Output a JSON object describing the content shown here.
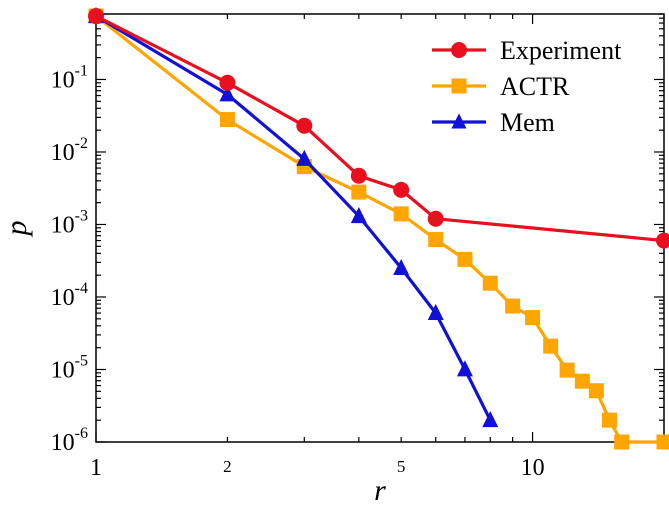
{
  "chart_data": {
    "type": "line",
    "xlabel": "r",
    "ylabel": "p",
    "xscale": "log",
    "yscale": "log",
    "xlim": [
      1,
      20
    ],
    "ylim": [
      1e-06,
      0.8
    ],
    "grid": false,
    "legend_position": "top-right",
    "x_ticks": [
      {
        "value": 1,
        "label": "1"
      },
      {
        "value": 2,
        "label": "2"
      },
      {
        "value": 5,
        "label": "5"
      },
      {
        "value": 10,
        "label": "10"
      }
    ],
    "y_ticks": [
      {
        "value": 0.1,
        "base": "10",
        "exp": "-1"
      },
      {
        "value": 0.01,
        "base": "10",
        "exp": "-2"
      },
      {
        "value": 0.001,
        "base": "10",
        "exp": "-3"
      },
      {
        "value": 0.0001,
        "base": "10",
        "exp": "-4"
      },
      {
        "value": 1e-05,
        "base": "10",
        "exp": "-5"
      },
      {
        "value": 1e-06,
        "base": "10",
        "exp": "-6"
      }
    ],
    "series": [
      {
        "name": "Experiment",
        "color": "#e8101e",
        "marker": "circle",
        "x": [
          1,
          2,
          3,
          4,
          5,
          6,
          20
        ],
        "y": [
          0.75,
          0.09,
          0.023,
          0.0047,
          0.003,
          0.0012,
          0.0006
        ]
      },
      {
        "name": "ACTR",
        "color": "#ffa500",
        "marker": "square",
        "x": [
          1,
          2,
          3,
          4,
          5,
          6,
          7,
          8,
          9,
          10,
          11,
          12,
          13,
          14,
          15,
          16,
          20
        ],
        "y": [
          0.75,
          0.028,
          0.0063,
          0.0028,
          0.0014,
          0.00062,
          0.00033,
          0.000155,
          7.5e-05,
          5.2e-05,
          2.1e-05,
          9.8e-06,
          6.9e-06,
          5.1e-06,
          2e-06,
          1e-06,
          1e-06
        ]
      },
      {
        "name": "Mem",
        "color": "#1010d8",
        "marker": "triangle",
        "x": [
          1,
          2,
          3,
          4,
          5,
          6,
          7,
          8
        ],
        "y": [
          0.75,
          0.062,
          0.008,
          0.0013,
          0.00025,
          6e-05,
          1e-05,
          2e-06
        ]
      }
    ]
  }
}
